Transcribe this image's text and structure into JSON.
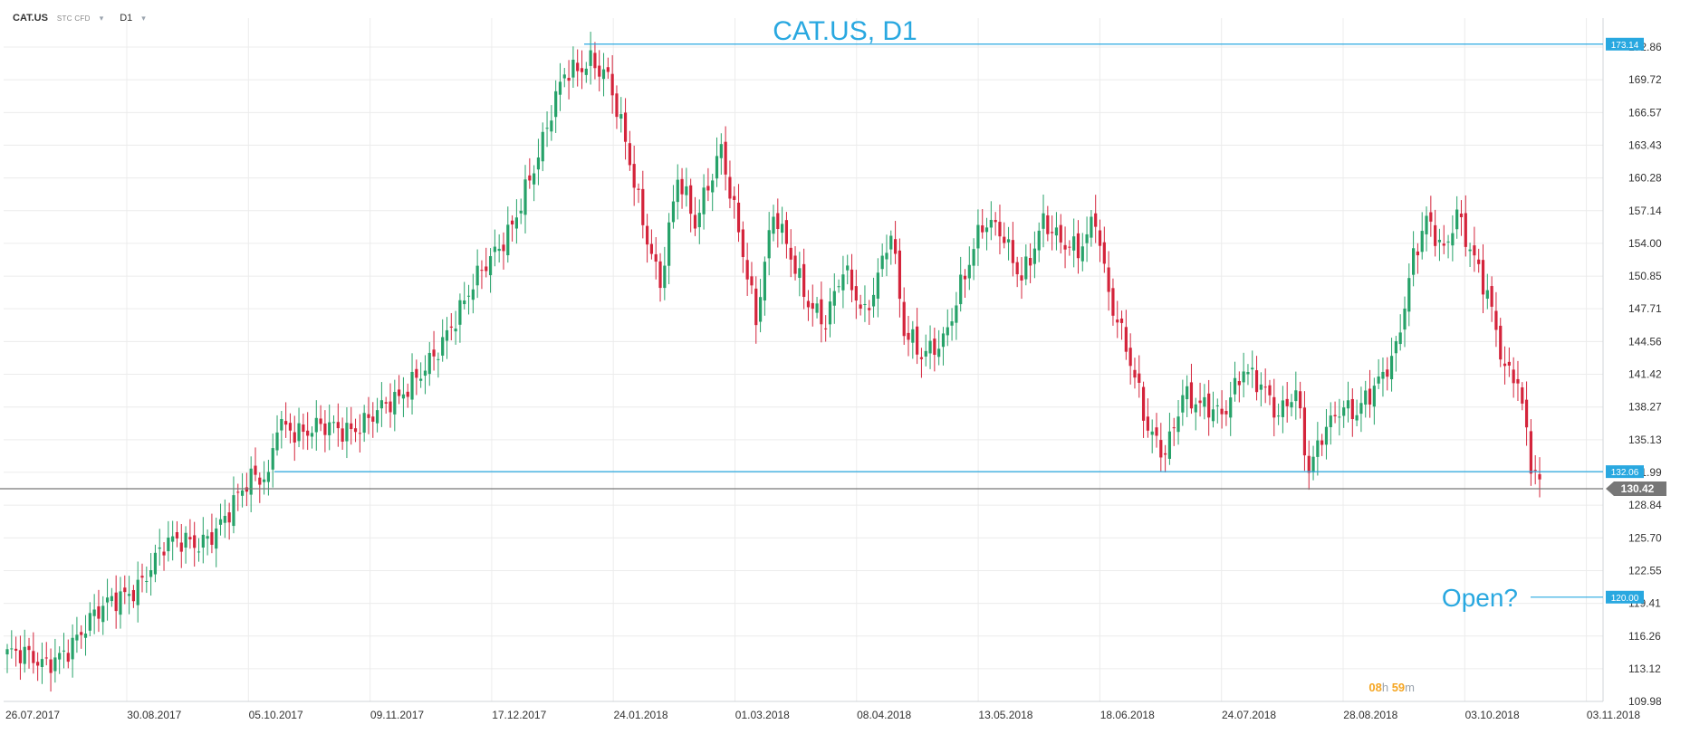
{
  "header": {
    "symbol": "CAT.US",
    "instrument_type": "STC CFD",
    "timeframe": "D1"
  },
  "countdown": {
    "hours": "08",
    "h_unit": "h",
    "minutes": "59",
    "m_unit": "m"
  },
  "chart_data": {
    "type": "candlestick",
    "title": "CAT.US, D1",
    "ylim": [
      109.98,
      172.86
    ],
    "y_ticks": [
      "172.86",
      "169.72",
      "166.57",
      "163.43",
      "160.28",
      "157.14",
      "154.00",
      "150.85",
      "147.71",
      "144.56",
      "141.42",
      "138.27",
      "135.13",
      "131.99",
      "128.84",
      "125.70",
      "122.55",
      "119.41",
      "116.26",
      "113.12",
      "109.98"
    ],
    "x_ticks": [
      "26.07.2017",
      "30.08.2017",
      "05.10.2017",
      "09.11.2017",
      "17.12.2017",
      "24.01.2018",
      "01.03.2018",
      "08.04.2018",
      "13.05.2018",
      "18.06.2018",
      "24.07.2018",
      "28.08.2018",
      "03.10.2018",
      "03.11.2018"
    ],
    "grid": true,
    "colors": {
      "up": "#26a269",
      "down": "#d4243b",
      "level": "#29a8e0",
      "price": "#777777",
      "grid": "#ececec",
      "text": "#333333"
    },
    "levels": [
      {
        "label": "173.14",
        "value": 173.14
      },
      {
        "label": "132.06",
        "value": 132.06
      },
      {
        "label": "120.00",
        "value": 120.0
      }
    ],
    "current_price": {
      "label": "130.42",
      "value": 130.42
    },
    "annotation": "Open?",
    "anchors": [
      [
        0,
        114.6
      ],
      [
        8,
        113.4
      ],
      [
        16,
        116.2
      ],
      [
        24,
        119.4
      ],
      [
        30,
        121.5
      ],
      [
        36,
        124.7
      ],
      [
        44,
        125.3
      ],
      [
        50,
        127.8
      ],
      [
        56,
        130.9
      ],
      [
        60,
        131.5
      ],
      [
        62,
        137.4
      ],
      [
        68,
        135.7
      ],
      [
        78,
        136.2
      ],
      [
        84,
        137.8
      ],
      [
        90,
        138.5
      ],
      [
        97,
        143.2
      ],
      [
        104,
        147.1
      ],
      [
        110,
        152.0
      ],
      [
        116,
        156.2
      ],
      [
        122,
        161.8
      ],
      [
        128,
        170.6
      ],
      [
        134,
        171.9
      ],
      [
        138,
        169.5
      ],
      [
        142,
        163.3
      ],
      [
        146,
        156.4
      ],
      [
        150,
        150.6
      ],
      [
        154,
        160.2
      ],
      [
        158,
        155.3
      ],
      [
        164,
        163.6
      ],
      [
        168,
        155.6
      ],
      [
        172,
        146.2
      ],
      [
        176,
        156.6
      ],
      [
        180,
        153.2
      ],
      [
        184,
        148.8
      ],
      [
        188,
        146.1
      ],
      [
        192,
        151.0
      ],
      [
        197,
        147.4
      ],
      [
        203,
        155.4
      ],
      [
        206,
        145.1
      ],
      [
        210,
        142.8
      ],
      [
        215,
        145.1
      ],
      [
        219,
        150.2
      ],
      [
        224,
        155.3
      ],
      [
        228,
        155.1
      ],
      [
        233,
        151.2
      ],
      [
        238,
        156.1
      ],
      [
        242,
        153.5
      ],
      [
        246,
        153.2
      ],
      [
        250,
        157.1
      ],
      [
        253,
        149.4
      ],
      [
        257,
        143.6
      ],
      [
        262,
        135.9
      ],
      [
        266,
        134.3
      ],
      [
        270,
        139.8
      ],
      [
        274,
        138.0
      ],
      [
        279,
        137.2
      ],
      [
        284,
        142.6
      ],
      [
        288,
        140.6
      ],
      [
        292,
        136.8
      ],
      [
        296,
        139.5
      ],
      [
        299,
        132.4
      ],
      [
        302,
        136.3
      ],
      [
        306,
        138.0
      ],
      [
        310,
        137.1
      ],
      [
        315,
        140.9
      ],
      [
        319,
        144.4
      ],
      [
        323,
        152.6
      ],
      [
        326,
        155.7
      ],
      [
        330,
        152.9
      ],
      [
        333,
        157.3
      ],
      [
        337,
        153.0
      ],
      [
        340,
        149.1
      ],
      [
        344,
        141.2
      ],
      [
        347,
        140.6
      ],
      [
        350,
        133.4
      ],
      [
        352,
        131.5
      ]
    ]
  }
}
